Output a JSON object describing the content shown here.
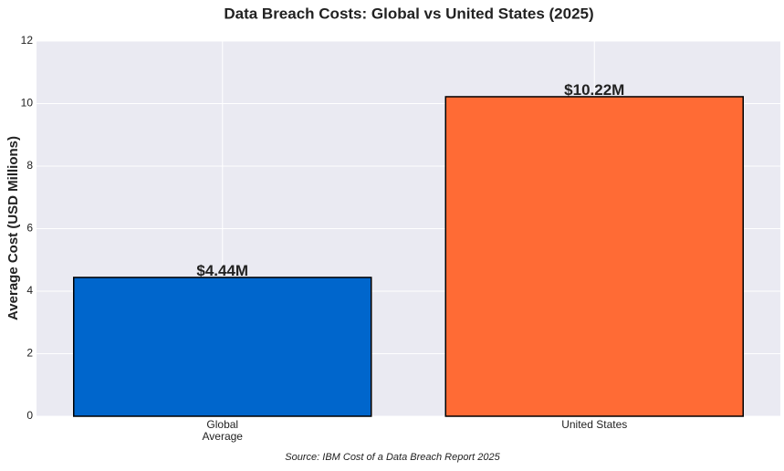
{
  "chart_data": {
    "type": "bar",
    "title": "Data Breach Costs: Global vs United States (2025)",
    "y_label": "Average Cost (USD Millions)",
    "source": "Source: IBM Cost of a Data Breach Report 2025",
    "categories": [
      "Global\nAverage",
      "United States"
    ],
    "values": [
      4.44,
      10.22
    ],
    "value_labels": [
      "$4.44M",
      "$10.22M"
    ],
    "colors": [
      "#0066cc",
      "#ff6b35"
    ],
    "ylim": [
      0,
      12
    ],
    "yticks": [
      0,
      2,
      4,
      6,
      8,
      10,
      12
    ],
    "grid": true
  }
}
